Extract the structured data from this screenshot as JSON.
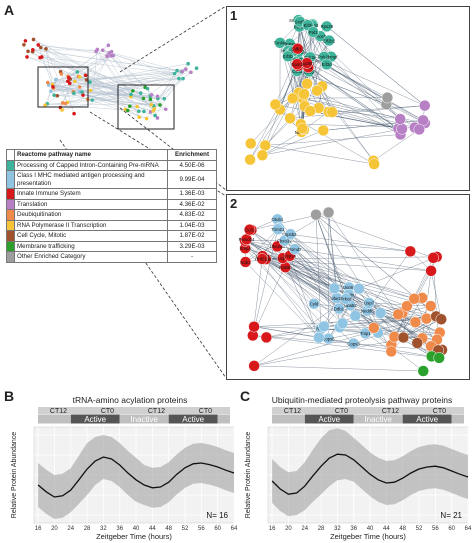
{
  "panels": {
    "A": "A",
    "B": "B",
    "C": "C",
    "inset1": "1",
    "inset2": "2"
  },
  "legend": {
    "header_name": "Reactome pathway name",
    "header_enrichment": "Enrichment",
    "rows": [
      {
        "name": "Processing of Capped Intron-Containing Pre-mRNA",
        "enrichment": "4.50E-06",
        "color": "#3cb39a"
      },
      {
        "name": "Class I MHC mediated antigen processing and presentation",
        "enrichment": "9.99E-04",
        "color": "#8fc4e3"
      },
      {
        "name": "Innate Immune System",
        "enrichment": "1.36E-03",
        "color": "#d7191c"
      },
      {
        "name": "Translation",
        "enrichment": "4.36E-02",
        "color": "#b77fc4"
      },
      {
        "name": "Deubiquitination",
        "enrichment": "4.83E-02",
        "color": "#f08a4b"
      },
      {
        "name": "RNA Polymerase II Transcription",
        "enrichment": "1.04E-03",
        "color": "#f5c437"
      },
      {
        "name": "Cell Cycle, Mitotic",
        "enrichment": "1.87E-02",
        "color": "#a0522d"
      },
      {
        "name": "Membrane trafficking",
        "enrichment": "3.29E-03",
        "color": "#2ca02c"
      },
      {
        "name": "Other Enriched Category",
        "enrichment": "-",
        "color": "#9e9e9e"
      }
    ]
  },
  "network1_labels": [
    "Cpsf3",
    "Hnrnpr",
    "Snrnp200",
    "Hnrnpf",
    "Prmt5",
    "Srsf1",
    "Srsf7",
    "Thoc2",
    "Thoc5",
    "Txnl4a",
    "Hnrnpu",
    "Cdc5l",
    "Psmb1",
    "Polr2e",
    "Cstf3",
    "Polr2b",
    "Cpsf6",
    "Ints10",
    "Ints7",
    "Eif2b2",
    "Eif3b",
    "Eif4g3",
    "Rps28",
    "Eif3d",
    "Eif3i",
    "Paf1",
    "Ctr9",
    "Cdk12",
    "Leo1",
    "Rtf1",
    "Supt5h",
    "Dpm3",
    "Nudt21"
  ],
  "network2_labels": [
    "Pkp",
    "Smpa",
    "Tap1",
    "Psmd14",
    "Rab5b",
    "Cyba",
    "Ube2d3",
    "Nub1",
    "Usp5",
    "Usp14",
    "Ube2l3",
    "Rnf213",
    "Cul3",
    "Cul1",
    "Fbxo32",
    "Otub1",
    "Psmd7",
    "Ctsb",
    "Trim21",
    "Spsb2",
    "Ube2n",
    "Rnf4",
    "Nedd8",
    "Tnip1",
    "Uba52",
    "Usp7",
    "Ddb1",
    "Usp9x",
    "Cops3",
    "Cops5",
    "Otulin",
    "Prkcd",
    "Cyld"
  ],
  "chart_data": [
    {
      "type": "line",
      "title": "tRNA-amino acylation proteins",
      "xlabel": "Zeitgeber Time (hours)",
      "ylabel": "Relative Protein Abundance",
      "xticks": [
        16,
        20,
        24,
        28,
        32,
        36,
        40,
        44,
        48,
        52,
        56,
        60,
        64
      ],
      "xlim": [
        15,
        64
      ],
      "phase_labels": [
        "CT12",
        "CT0",
        "CT12",
        "CT0"
      ],
      "phase_label_x": [
        21,
        33,
        45,
        57
      ],
      "phase_bands": [
        {
          "label": "Active",
          "start": 24,
          "end": 36,
          "dark": true
        },
        {
          "label": "Inactive",
          "start": 36,
          "end": 48,
          "dark": false
        },
        {
          "label": "Active",
          "start": 48,
          "end": 60,
          "dark": true
        }
      ],
      "n_label": "N= 16",
      "x": [
        16,
        18,
        20,
        22,
        24,
        26,
        28,
        30,
        32,
        34,
        36,
        38,
        40,
        42,
        44,
        46,
        48,
        50,
        52,
        54,
        56,
        58,
        60,
        62,
        64
      ],
      "mean": [
        -0.25,
        -0.42,
        -0.55,
        -0.52,
        -0.38,
        -0.12,
        0.15,
        0.35,
        0.45,
        0.4,
        0.25,
        0.05,
        -0.12,
        -0.25,
        -0.32,
        -0.3,
        -0.18,
        0.02,
        0.18,
        0.28,
        0.3,
        0.26,
        0.2,
        0.12,
        0.05
      ],
      "band_half_width": [
        0.55,
        0.55,
        0.55,
        0.55,
        0.55,
        0.6,
        0.65,
        0.6,
        0.55,
        0.55,
        0.55,
        0.55,
        0.55,
        0.5,
        0.5,
        0.5,
        0.5,
        0.5,
        0.5,
        0.5,
        0.5,
        0.5,
        0.5,
        0.5,
        0.5
      ],
      "ylim": [
        -1.2,
        1.2
      ]
    },
    {
      "type": "line",
      "title": "Ubiquitin-mediated proteolysis pathway proteins",
      "xlabel": "Zeitgeber Time (hours)",
      "ylabel": "Relative Protein Abundance",
      "xticks": [
        16,
        20,
        24,
        28,
        32,
        36,
        40,
        44,
        48,
        52,
        56,
        60,
        64
      ],
      "xlim": [
        15,
        64
      ],
      "phase_labels": [
        "CT12",
        "CT0",
        "CT12",
        "CT0"
      ],
      "phase_label_x": [
        21,
        33,
        45,
        57
      ],
      "phase_bands": [
        {
          "label": "Active",
          "start": 24,
          "end": 36,
          "dark": true
        },
        {
          "label": "Inactive",
          "start": 36,
          "end": 48,
          "dark": false
        },
        {
          "label": "Active",
          "start": 48,
          "end": 60,
          "dark": true
        }
      ],
      "n_label": "N= 21",
      "x": [
        16,
        18,
        20,
        22,
        24,
        26,
        28,
        30,
        32,
        34,
        36,
        38,
        40,
        42,
        44,
        46,
        48,
        50,
        52,
        54,
        56,
        58,
        60,
        62,
        64
      ],
      "mean": [
        -0.15,
        -0.35,
        -0.48,
        -0.45,
        -0.28,
        -0.02,
        0.22,
        0.42,
        0.52,
        0.5,
        0.38,
        0.2,
        0.02,
        -0.12,
        -0.2,
        -0.18,
        -0.08,
        0.05,
        0.15,
        0.2,
        0.22,
        0.18,
        0.1,
        0.02,
        -0.05
      ],
      "band_half_width": [
        0.55,
        0.55,
        0.55,
        0.55,
        0.6,
        0.65,
        0.7,
        0.7,
        0.65,
        0.6,
        0.55,
        0.55,
        0.55,
        0.55,
        0.55,
        0.55,
        0.55,
        0.55,
        0.55,
        0.55,
        0.55,
        0.55,
        0.55,
        0.55,
        0.55
      ],
      "ylim": [
        -1.2,
        1.2
      ]
    }
  ]
}
